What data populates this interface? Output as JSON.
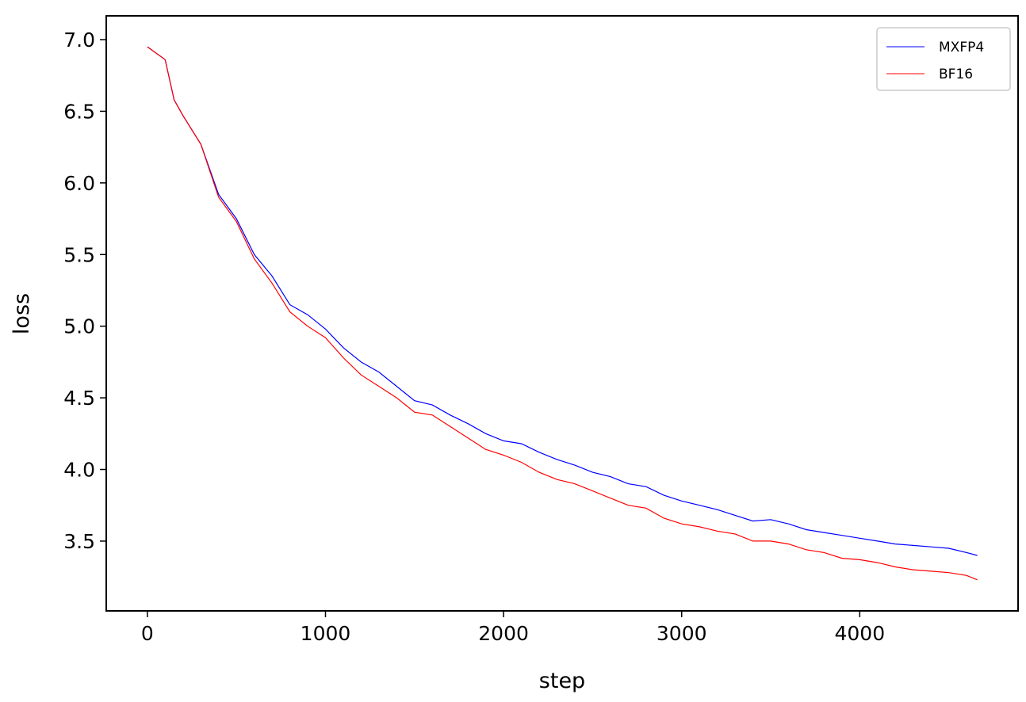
{
  "chart_data": {
    "type": "line",
    "title": "",
    "xlabel": "step",
    "ylabel": "loss",
    "xlim": [
      -231,
      4889
    ],
    "ylim": [
      3.013,
      7.166
    ],
    "xticks": [
      0,
      1000,
      2000,
      3000,
      4000
    ],
    "xtick_labels": [
      "0",
      "1000",
      "2000",
      "3000",
      "4000"
    ],
    "yticks": [
      3.5,
      4.0,
      4.5,
      5.0,
      5.5,
      6.0,
      6.5,
      7.0
    ],
    "ytick_labels": [
      "3.5",
      "4.0",
      "4.5",
      "5.0",
      "5.5",
      "6.0",
      "6.5",
      "7.0"
    ],
    "grid": false,
    "legend_position": "top-right",
    "x": [
      0,
      100,
      150,
      200,
      300,
      400,
      500,
      600,
      700,
      800,
      900,
      1000,
      1100,
      1200,
      1300,
      1400,
      1500,
      1600,
      1700,
      1800,
      1900,
      2000,
      2100,
      2200,
      2300,
      2400,
      2500,
      2600,
      2700,
      2800,
      2900,
      3000,
      3100,
      3200,
      3300,
      3400,
      3500,
      3600,
      3700,
      3800,
      3900,
      4000,
      4100,
      4200,
      4300,
      4400,
      4500,
      4600,
      4660
    ],
    "series": [
      {
        "name": "MXFP4",
        "color": "#0000ff",
        "values": [
          6.95,
          6.86,
          6.58,
          6.47,
          6.27,
          5.92,
          5.75,
          5.5,
          5.35,
          5.15,
          5.08,
          4.98,
          4.85,
          4.75,
          4.68,
          4.58,
          4.48,
          4.45,
          4.38,
          4.32,
          4.25,
          4.2,
          4.18,
          4.12,
          4.07,
          4.03,
          3.98,
          3.95,
          3.9,
          3.88,
          3.82,
          3.78,
          3.75,
          3.72,
          3.68,
          3.64,
          3.65,
          3.62,
          3.58,
          3.56,
          3.54,
          3.52,
          3.5,
          3.48,
          3.47,
          3.46,
          3.45,
          3.42,
          3.4
        ]
      },
      {
        "name": "BF16",
        "color": "#ff0000",
        "values": [
          6.95,
          6.86,
          6.58,
          6.47,
          6.27,
          5.9,
          5.73,
          5.47,
          5.3,
          5.1,
          5.0,
          4.92,
          4.78,
          4.66,
          4.58,
          4.5,
          4.4,
          4.38,
          4.3,
          4.22,
          4.14,
          4.1,
          4.05,
          3.98,
          3.93,
          3.9,
          3.85,
          3.8,
          3.75,
          3.73,
          3.66,
          3.62,
          3.6,
          3.57,
          3.55,
          3.5,
          3.5,
          3.48,
          3.44,
          3.42,
          3.38,
          3.37,
          3.35,
          3.32,
          3.3,
          3.29,
          3.28,
          3.26,
          3.23
        ]
      }
    ]
  }
}
